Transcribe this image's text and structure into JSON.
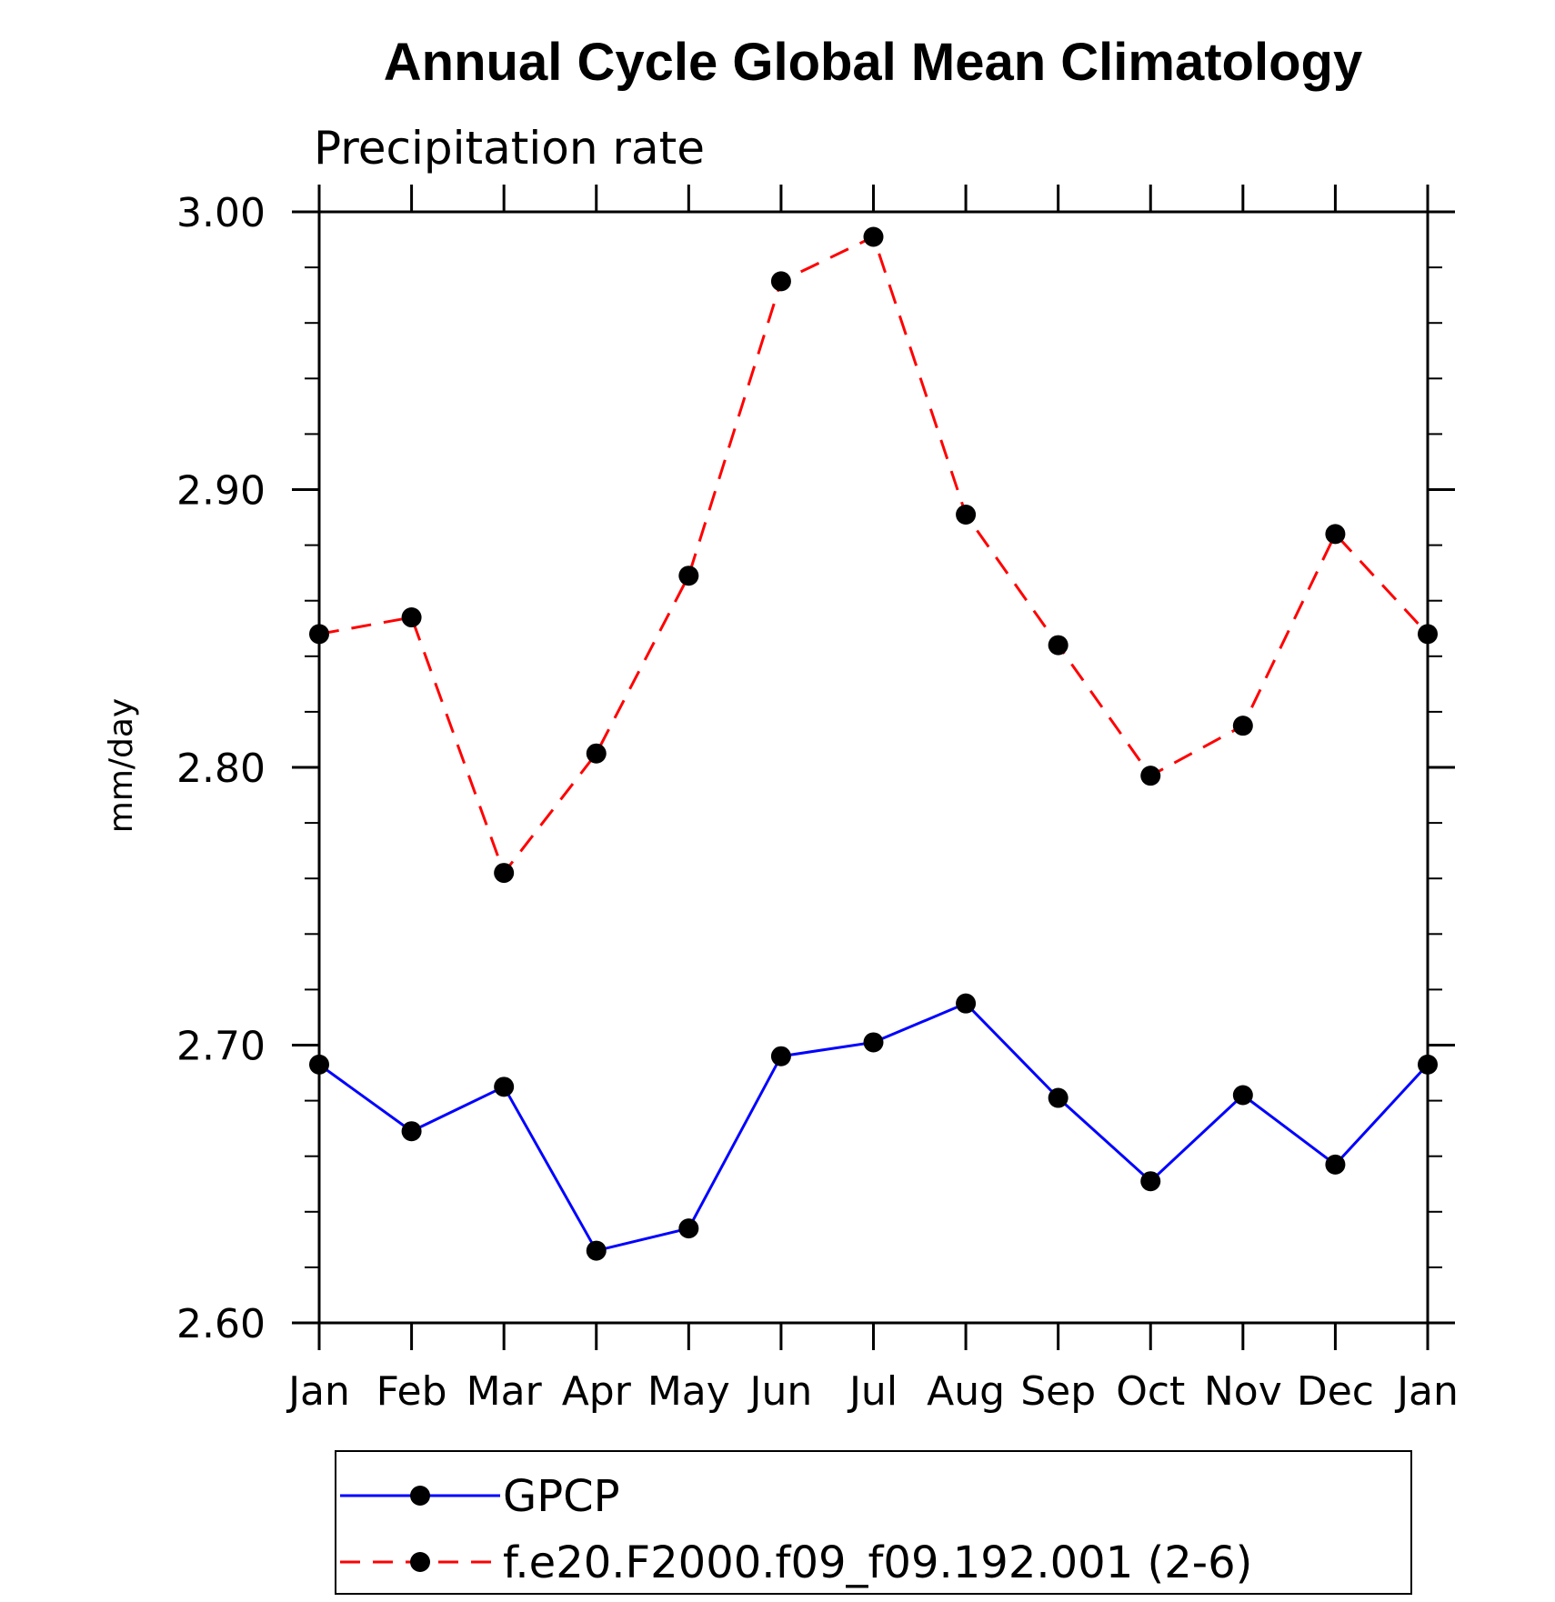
{
  "chart_data": {
    "type": "line",
    "title": "Annual Cycle Global Mean Climatology",
    "subtitle": "Precipitation rate",
    "ylabel": "mm/day",
    "xlabel": "",
    "categories": [
      "Jan",
      "Feb",
      "Mar",
      "Apr",
      "May",
      "Jun",
      "Jul",
      "Aug",
      "Sep",
      "Oct",
      "Nov",
      "Dec",
      "Jan"
    ],
    "ylim": [
      2.6,
      3.0
    ],
    "yticks": [
      "2.60",
      "2.70",
      "2.80",
      "2.90",
      "3.00"
    ],
    "yminor_step": 0.02,
    "series": [
      {
        "name": "GPCP",
        "color": "#0000ff",
        "dash": "solid",
        "marker": "filled-circle",
        "values": [
          2.693,
          2.669,
          2.685,
          2.626,
          2.634,
          2.696,
          2.701,
          2.715,
          2.681,
          2.651,
          2.682,
          2.657,
          2.693
        ]
      },
      {
        "name": "f.e20.F2000.f09_f09.192.001 (2-6)",
        "color": "#ff0000",
        "dash": "dashed",
        "marker": "filled-circle",
        "values": [
          2.848,
          2.854,
          2.762,
          2.805,
          2.869,
          2.975,
          2.991,
          2.891,
          2.844,
          2.797,
          2.815,
          2.884,
          2.848
        ]
      }
    ],
    "legend_position": "bottom",
    "grid": false
  }
}
